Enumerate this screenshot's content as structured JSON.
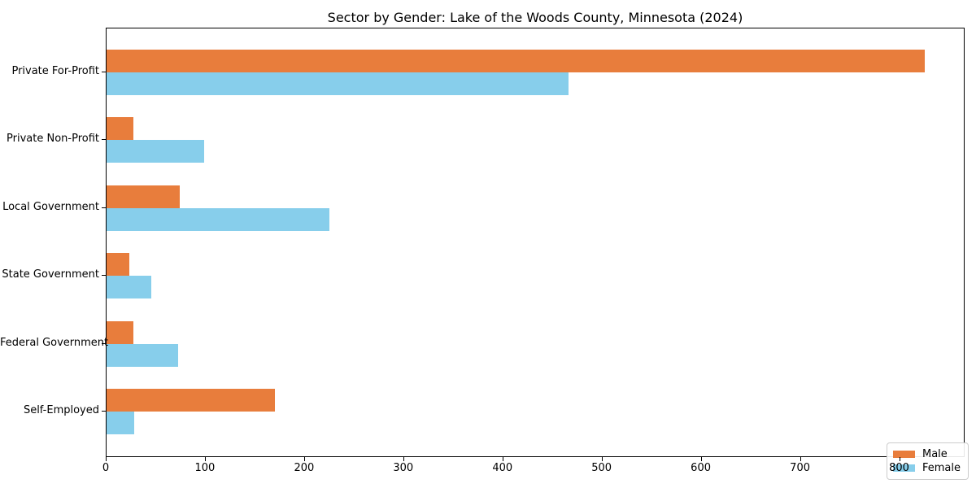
{
  "chart_data": {
    "type": "bar",
    "orientation": "horizontal",
    "title": "Sector by Gender: Lake of the Woods County, Minnesota (2024)",
    "categories": [
      "Private For-Profit",
      "Private Non-Profit",
      "Local Government",
      "State Government",
      "Federal Government",
      "Self-Employed"
    ],
    "series": [
      {
        "name": "Male",
        "color": "#e87d3c",
        "values": [
          825,
          27,
          74,
          23,
          27,
          170
        ]
      },
      {
        "name": "Female",
        "color": "#87ceeb",
        "values": [
          466,
          98,
          225,
          45,
          72,
          28
        ]
      }
    ],
    "xlabel": "",
    "ylabel": "",
    "xlim": [
      0,
      866
    ],
    "xticks": [
      0,
      100,
      200,
      300,
      400,
      500,
      600,
      700,
      800
    ],
    "grid": false,
    "legend_position": "lower right",
    "frame": true,
    "background_color": "#ffffff",
    "text_color": "#000000"
  }
}
